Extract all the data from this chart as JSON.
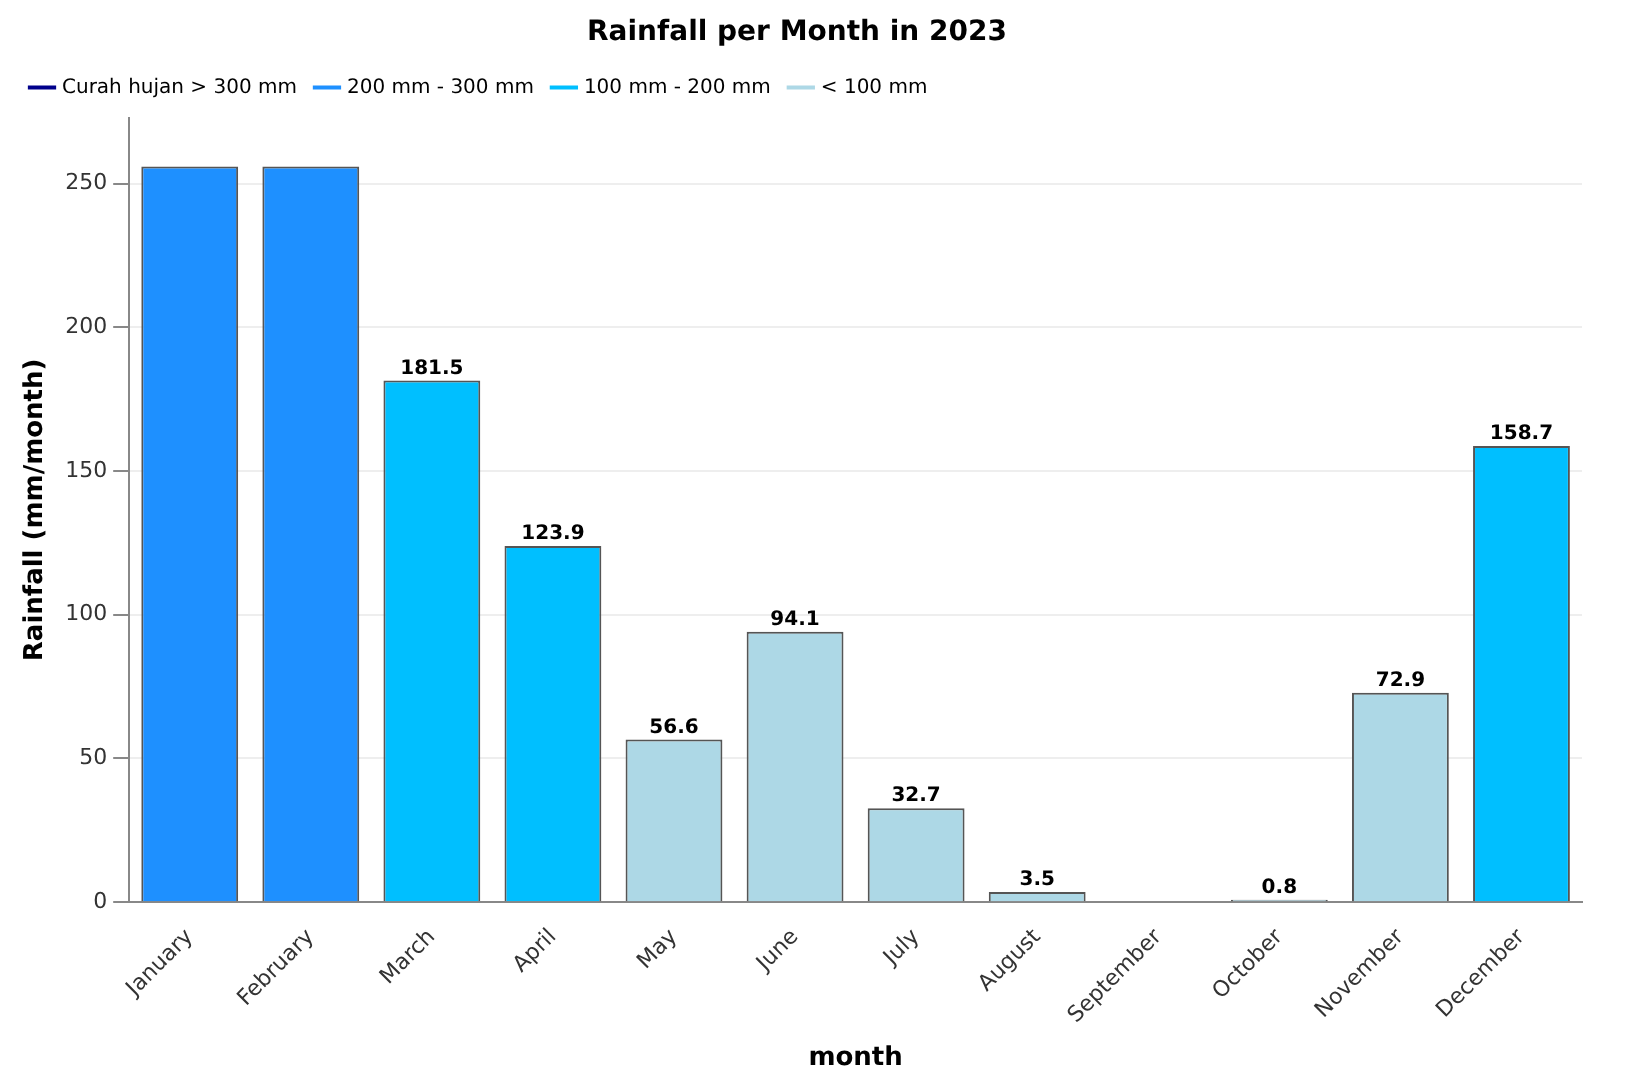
{
  "chart_data": {
    "type": "bar",
    "title": "Rainfall per Month in 2023",
    "xlabel": "month",
    "ylabel": "Rainfall (mm/month)",
    "categories": [
      "January",
      "February",
      "March",
      "April",
      "May",
      "June",
      "July",
      "August",
      "September",
      "October",
      "November",
      "December"
    ],
    "series": [
      {
        "name": "Curah hujan > 300 mm",
        "color": "#00008b",
        "values": [
          null,
          null,
          null,
          null,
          null,
          null,
          null,
          null,
          null,
          null,
          null,
          null
        ]
      },
      {
        "name": "200 mm - 300 mm",
        "color": "#1e90ff",
        "values": [
          256,
          256,
          null,
          null,
          null,
          null,
          null,
          null,
          null,
          null,
          null,
          null
        ]
      },
      {
        "name": "100 mm - 200 mm",
        "color": "#00bfff",
        "values": [
          null,
          null,
          181.5,
          123.9,
          null,
          null,
          null,
          null,
          null,
          null,
          null,
          158.7
        ],
        "value_labels": [
          null,
          null,
          "181.5",
          "123.9",
          null,
          null,
          null,
          null,
          null,
          null,
          null,
          "158.7"
        ]
      },
      {
        "name": "< 100 mm",
        "color": "#add8e6",
        "values": [
          null,
          null,
          null,
          null,
          56.6,
          94.1,
          32.7,
          3.5,
          0,
          0.8,
          72.9,
          null
        ],
        "value_labels": [
          null,
          null,
          null,
          null,
          "56.6",
          "94.1",
          "32.7",
          "3.5",
          null,
          "0.8",
          "72.9",
          null
        ]
      }
    ],
    "ylim": [
      0,
      273
    ],
    "yticks": [
      0,
      50,
      100,
      150,
      200,
      250
    ],
    "grid": "y",
    "legend": "top left"
  }
}
